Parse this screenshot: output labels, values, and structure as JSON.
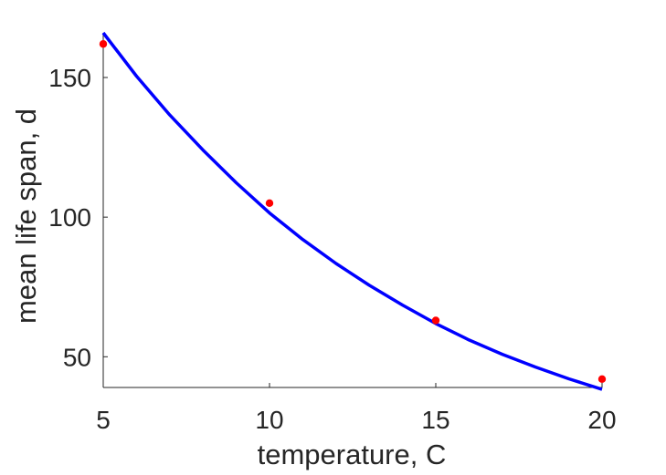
{
  "chart_data": {
    "type": "scatter",
    "xlabel": "temperature, C",
    "ylabel": "mean life span, d",
    "xlim": [
      5,
      20
    ],
    "ylim": [
      39,
      166
    ],
    "xticks": [
      5,
      10,
      15,
      20
    ],
    "yticks": [
      50,
      100,
      150
    ],
    "grid": false,
    "axes_box": false,
    "series": [
      {
        "kind": "points",
        "marker": "filled-circle",
        "color": "#ff0000",
        "x": [
          5,
          10,
          15,
          20
        ],
        "y": [
          162,
          105,
          63,
          42
        ]
      },
      {
        "kind": "fit-line",
        "color": "#0000ff",
        "x": [
          5,
          6,
          7,
          8,
          9,
          10,
          11,
          12,
          13,
          14,
          15,
          16,
          17,
          18,
          19,
          20
        ],
        "y": [
          166,
          150.5,
          136.6,
          124.0,
          112.3,
          101.5,
          92.0,
          83.4,
          75.6,
          68.5,
          61.9,
          56.0,
          50.9,
          46.3,
          42.1,
          38.3
        ]
      }
    ]
  }
}
